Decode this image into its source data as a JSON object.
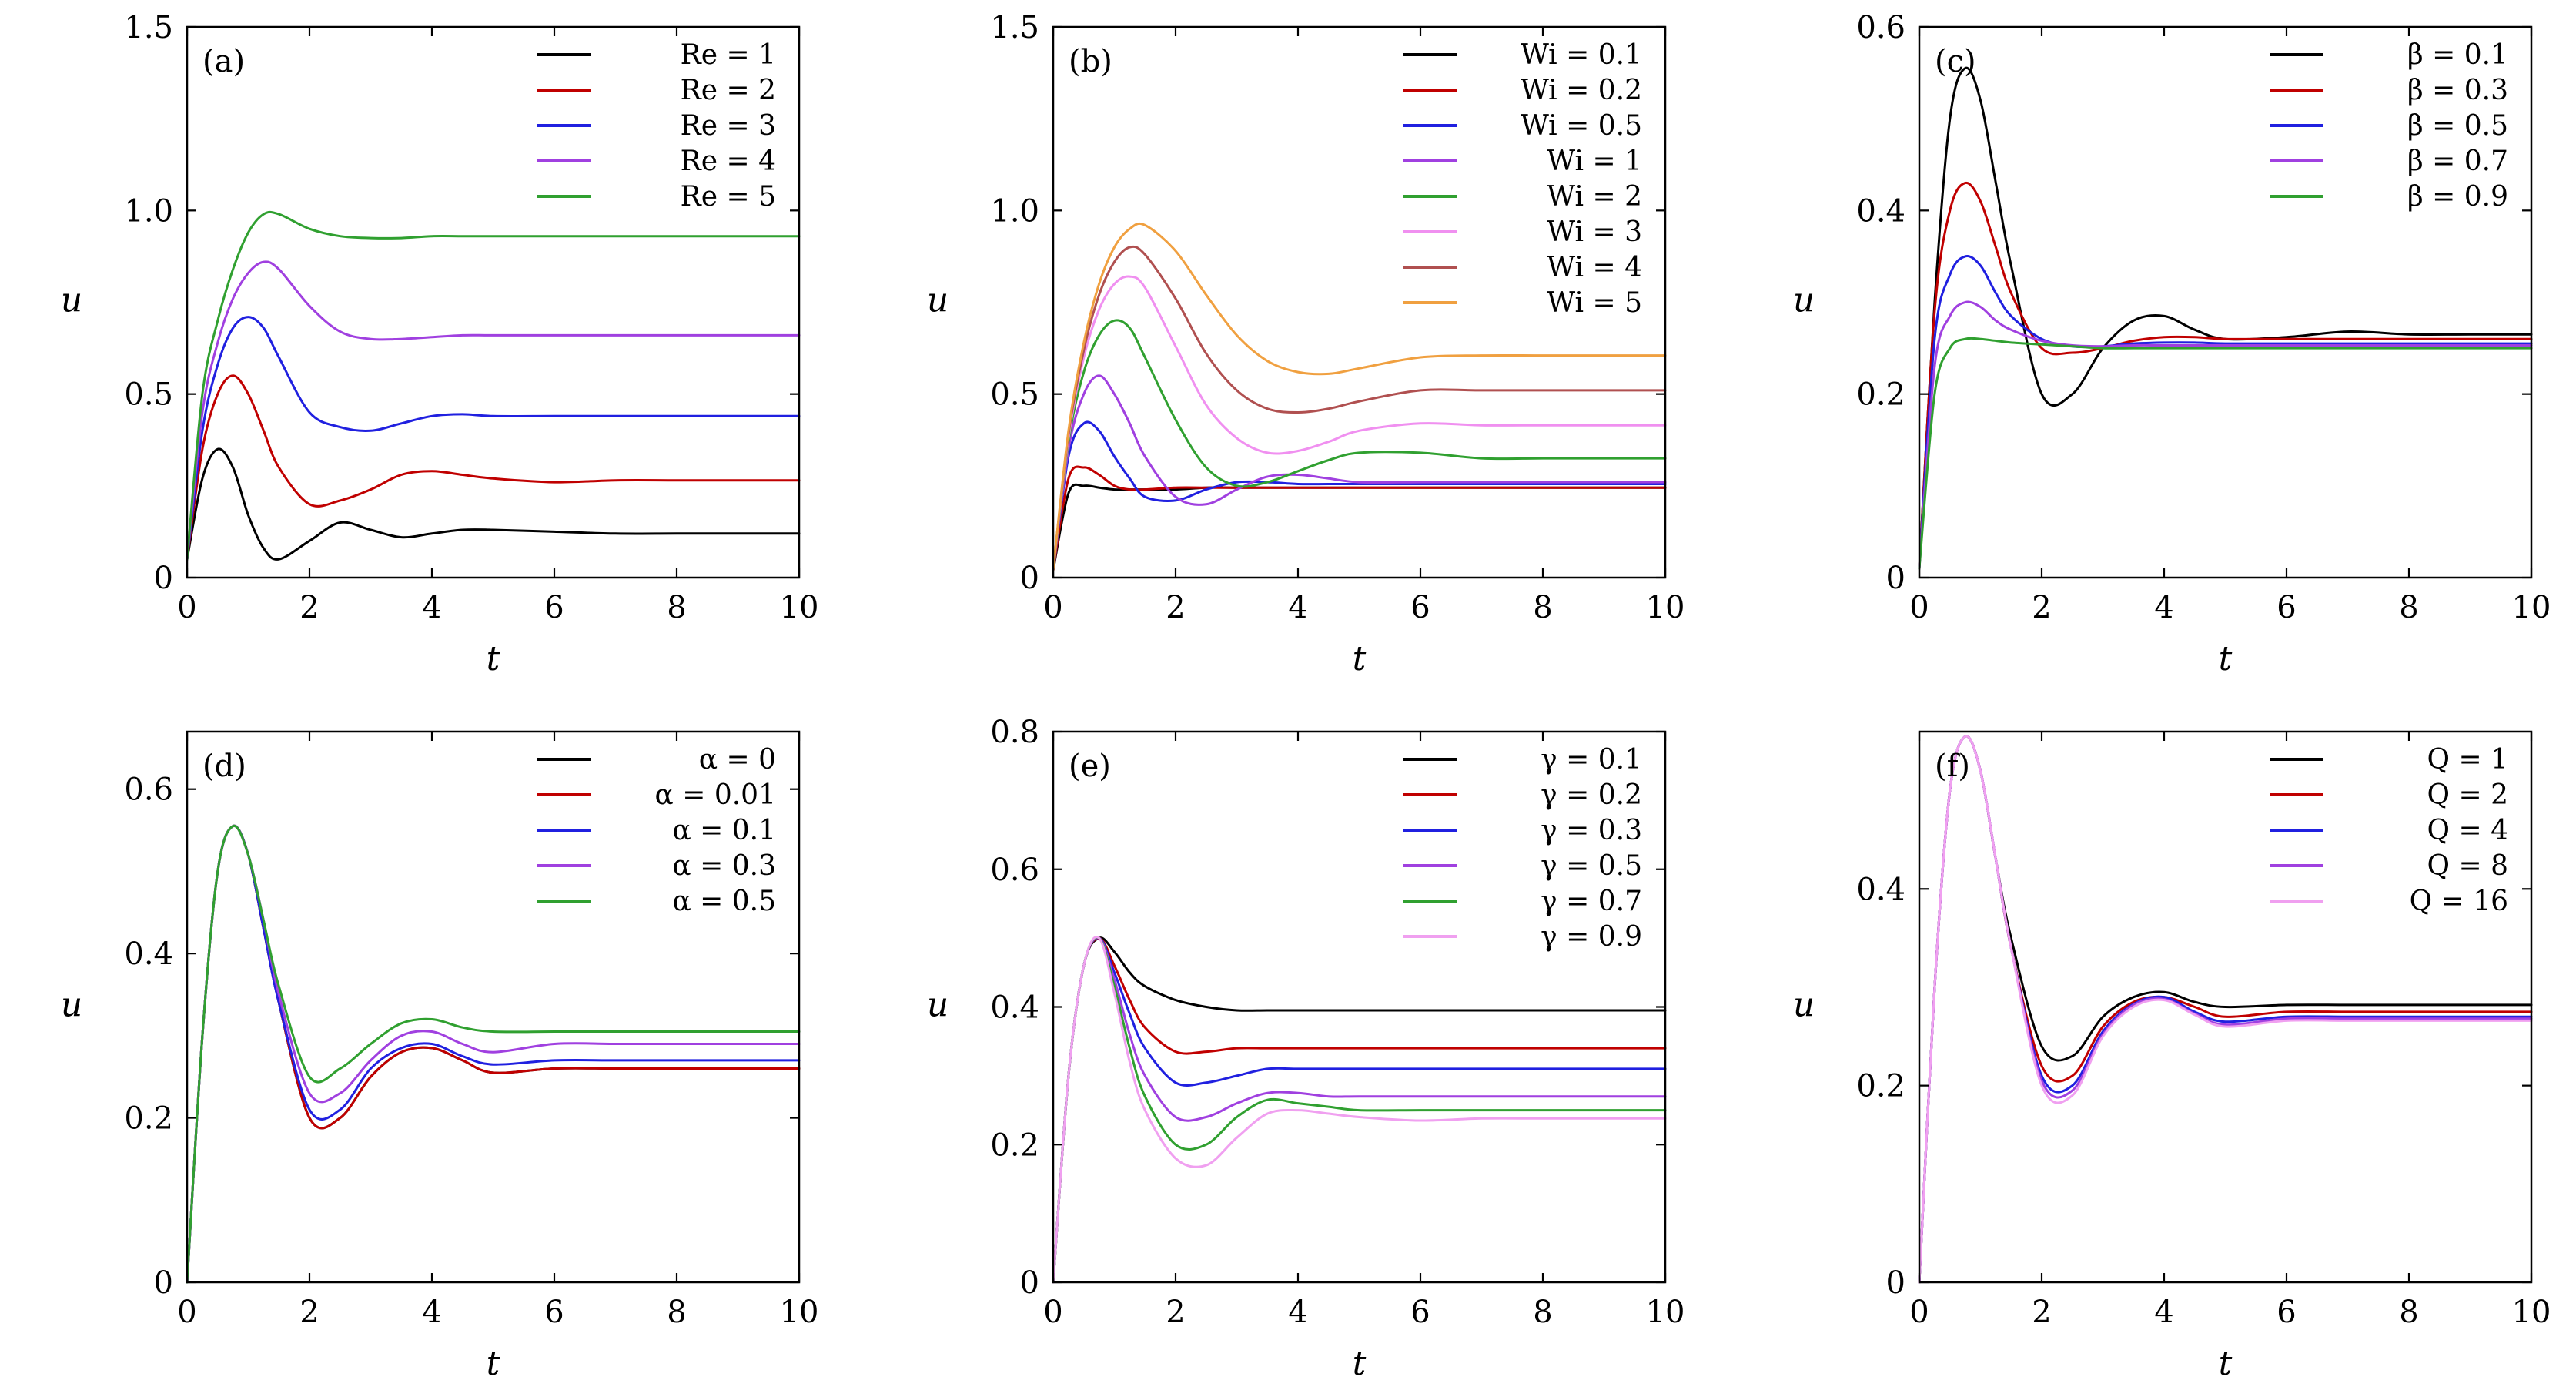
{
  "chart_data": [
    {
      "type": "line",
      "panel": "(a)",
      "xlabel": "t",
      "ylabel": "u",
      "xlim": [
        0,
        10
      ],
      "ylim": [
        0,
        1.5
      ],
      "xticks": [
        "0",
        "2",
        "4",
        "6",
        "8",
        "10"
      ],
      "yticks": [
        "0",
        "0.5",
        "1.0",
        "1.5"
      ],
      "x": [
        0,
        0.25,
        0.5,
        0.75,
        1,
        1.25,
        1.5,
        2,
        2.5,
        3,
        3.5,
        4,
        4.5,
        5,
        6,
        7,
        8,
        9,
        10
      ],
      "legend_position": "top-right",
      "series": [
        {
          "name": "Re = 1",
          "color": "#000000",
          "values": [
            0.05,
            0.27,
            0.35,
            0.3,
            0.17,
            0.08,
            0.05,
            0.1,
            0.15,
            0.13,
            0.11,
            0.12,
            0.13,
            0.13,
            0.125,
            0.12,
            0.12,
            0.12,
            0.12
          ]
        },
        {
          "name": "Re = 2",
          "color": "#c00000",
          "values": [
            0.05,
            0.35,
            0.5,
            0.55,
            0.5,
            0.4,
            0.3,
            0.2,
            0.21,
            0.24,
            0.28,
            0.29,
            0.28,
            0.27,
            0.26,
            0.265,
            0.265,
            0.265,
            0.265
          ]
        },
        {
          "name": "Re = 3",
          "color": "#2020e0",
          "values": [
            0.05,
            0.4,
            0.58,
            0.68,
            0.71,
            0.68,
            0.6,
            0.45,
            0.41,
            0.4,
            0.42,
            0.44,
            0.445,
            0.44,
            0.44,
            0.44,
            0.44,
            0.44,
            0.44
          ]
        },
        {
          "name": "Re = 4",
          "color": "#a040e0",
          "values": [
            0.05,
            0.45,
            0.64,
            0.76,
            0.83,
            0.86,
            0.84,
            0.74,
            0.67,
            0.65,
            0.65,
            0.655,
            0.66,
            0.66,
            0.66,
            0.66,
            0.66,
            0.66,
            0.66
          ]
        },
        {
          "name": "Re = 5",
          "color": "#30a030",
          "values": [
            0.05,
            0.5,
            0.7,
            0.84,
            0.94,
            0.99,
            0.99,
            0.95,
            0.93,
            0.925,
            0.925,
            0.93,
            0.93,
            0.93,
            0.93,
            0.93,
            0.93,
            0.93,
            0.93
          ]
        }
      ]
    },
    {
      "type": "line",
      "panel": "(b)",
      "xlabel": "t",
      "ylabel": "u",
      "xlim": [
        0,
        10
      ],
      "ylim": [
        0,
        1.5
      ],
      "xticks": [
        "0",
        "2",
        "4",
        "6",
        "8",
        "10"
      ],
      "yticks": [
        "0",
        "0.5",
        "1.0",
        "1.5"
      ],
      "x": [
        0,
        0.25,
        0.5,
        0.75,
        1,
        1.25,
        1.5,
        2,
        2.5,
        3,
        3.5,
        4,
        4.5,
        5,
        6,
        7,
        8,
        9,
        10
      ],
      "legend_position": "top-right",
      "series": [
        {
          "name": "Wi = 0.1",
          "color": "#000000",
          "values": [
            0.02,
            0.23,
            0.25,
            0.245,
            0.24,
            0.24,
            0.24,
            0.24,
            0.245,
            0.245,
            0.245,
            0.245,
            0.245,
            0.245,
            0.245,
            0.245,
            0.245,
            0.245,
            0.245
          ]
        },
        {
          "name": "Wi = 0.2",
          "color": "#c00000",
          "values": [
            0.02,
            0.27,
            0.3,
            0.28,
            0.25,
            0.24,
            0.24,
            0.245,
            0.245,
            0.245,
            0.245,
            0.245,
            0.245,
            0.245,
            0.245,
            0.245,
            0.245,
            0.245,
            0.245
          ]
        },
        {
          "name": "Wi = 0.5",
          "color": "#2020e0",
          "values": [
            0.02,
            0.33,
            0.42,
            0.4,
            0.33,
            0.27,
            0.22,
            0.21,
            0.24,
            0.26,
            0.26,
            0.255,
            0.255,
            0.255,
            0.255,
            0.255,
            0.255,
            0.255,
            0.255
          ]
        },
        {
          "name": "Wi = 1",
          "color": "#a040e0",
          "values": [
            0.02,
            0.35,
            0.5,
            0.55,
            0.5,
            0.42,
            0.33,
            0.22,
            0.2,
            0.24,
            0.275,
            0.28,
            0.27,
            0.26,
            0.26,
            0.26,
            0.26,
            0.26,
            0.26
          ]
        },
        {
          "name": "Wi = 2",
          "color": "#30a030",
          "values": [
            0.02,
            0.37,
            0.56,
            0.66,
            0.7,
            0.68,
            0.6,
            0.43,
            0.3,
            0.25,
            0.26,
            0.29,
            0.32,
            0.34,
            0.34,
            0.325,
            0.325,
            0.325,
            0.325
          ]
        },
        {
          "name": "Wi = 3",
          "color": "#f090f0",
          "values": [
            0.02,
            0.38,
            0.6,
            0.73,
            0.8,
            0.82,
            0.79,
            0.63,
            0.47,
            0.38,
            0.34,
            0.345,
            0.37,
            0.4,
            0.42,
            0.415,
            0.415,
            0.415,
            0.415
          ]
        },
        {
          "name": "Wi = 4",
          "color": "#b05050",
          "values": [
            0.02,
            0.39,
            0.62,
            0.77,
            0.86,
            0.9,
            0.88,
            0.76,
            0.61,
            0.51,
            0.46,
            0.45,
            0.46,
            0.48,
            0.51,
            0.51,
            0.51,
            0.51,
            0.51
          ]
        },
        {
          "name": "Wi = 5",
          "color": "#f0a040",
          "values": [
            0.02,
            0.4,
            0.64,
            0.8,
            0.9,
            0.95,
            0.96,
            0.89,
            0.77,
            0.66,
            0.59,
            0.56,
            0.555,
            0.57,
            0.6,
            0.605,
            0.605,
            0.605,
            0.605
          ]
        }
      ]
    },
    {
      "type": "line",
      "panel": "(c)",
      "xlabel": "t",
      "ylabel": "u",
      "xlim": [
        0,
        10
      ],
      "ylim": [
        0,
        0.6
      ],
      "xticks": [
        "0",
        "2",
        "4",
        "6",
        "8",
        "10"
      ],
      "yticks": [
        "0",
        "0.2",
        "0.4",
        "0.6"
      ],
      "x": [
        0,
        0.25,
        0.5,
        0.75,
        1,
        1.25,
        1.5,
        2,
        2.5,
        3,
        3.5,
        4,
        4.5,
        5,
        6,
        7,
        8,
        9,
        10
      ],
      "legend_position": "top-right",
      "series": [
        {
          "name": "β = 0.1",
          "color": "#000000",
          "values": [
            0.01,
            0.3,
            0.5,
            0.555,
            0.52,
            0.43,
            0.34,
            0.2,
            0.2,
            0.25,
            0.28,
            0.285,
            0.27,
            0.26,
            0.262,
            0.268,
            0.265,
            0.265,
            0.265
          ]
        },
        {
          "name": "β = 0.3",
          "color": "#c00000",
          "values": [
            0.01,
            0.29,
            0.4,
            0.43,
            0.41,
            0.36,
            0.31,
            0.25,
            0.245,
            0.25,
            0.258,
            0.262,
            0.262,
            0.26,
            0.26,
            0.26,
            0.26,
            0.26,
            0.26
          ]
        },
        {
          "name": "β = 0.5",
          "color": "#2020e0",
          "values": [
            0.01,
            0.26,
            0.33,
            0.35,
            0.34,
            0.31,
            0.285,
            0.26,
            0.252,
            0.252,
            0.255,
            0.256,
            0.256,
            0.255,
            0.255,
            0.255,
            0.255,
            0.255,
            0.255
          ]
        },
        {
          "name": "β = 0.7",
          "color": "#a040e0",
          "values": [
            0.01,
            0.23,
            0.285,
            0.3,
            0.295,
            0.28,
            0.27,
            0.258,
            0.253,
            0.252,
            0.253,
            0.253,
            0.253,
            0.253,
            0.253,
            0.253,
            0.253,
            0.253,
            0.253
          ]
        },
        {
          "name": "β = 0.9",
          "color": "#30a030",
          "values": [
            0.01,
            0.2,
            0.25,
            0.26,
            0.26,
            0.258,
            0.256,
            0.254,
            0.252,
            0.25,
            0.25,
            0.25,
            0.25,
            0.25,
            0.25,
            0.25,
            0.25,
            0.25,
            0.25
          ]
        }
      ]
    },
    {
      "type": "line",
      "panel": "(d)",
      "xlabel": "t",
      "ylabel": "u",
      "xlim": [
        0,
        10
      ],
      "ylim": [
        0,
        0.67
      ],
      "xticks": [
        "0",
        "2",
        "4",
        "6",
        "8",
        "10"
      ],
      "yticks": [
        "0",
        "0.2",
        "0.4",
        "0.6"
      ],
      "x": [
        0,
        0.25,
        0.5,
        0.75,
        1,
        1.25,
        1.5,
        2,
        2.5,
        3,
        3.5,
        4,
        4.5,
        5,
        6,
        7,
        8,
        9,
        10
      ],
      "legend_position": "top-right",
      "series": [
        {
          "name": "α = 0",
          "color": "#000000",
          "values": [
            0.0,
            0.3,
            0.5,
            0.555,
            0.52,
            0.43,
            0.34,
            0.2,
            0.2,
            0.25,
            0.28,
            0.285,
            0.27,
            0.255,
            0.26,
            0.26,
            0.26,
            0.26,
            0.26
          ]
        },
        {
          "name": "α = 0.01",
          "color": "#c00000",
          "values": [
            0.0,
            0.3,
            0.5,
            0.555,
            0.52,
            0.43,
            0.34,
            0.2,
            0.2,
            0.25,
            0.28,
            0.285,
            0.27,
            0.255,
            0.26,
            0.26,
            0.26,
            0.26,
            0.26
          ]
        },
        {
          "name": "α = 0.1",
          "color": "#2020e0",
          "values": [
            0.0,
            0.3,
            0.5,
            0.555,
            0.52,
            0.43,
            0.34,
            0.21,
            0.21,
            0.26,
            0.285,
            0.29,
            0.275,
            0.265,
            0.27,
            0.27,
            0.27,
            0.27,
            0.27
          ]
        },
        {
          "name": "α = 0.3",
          "color": "#a040e0",
          "values": [
            0.0,
            0.3,
            0.5,
            0.555,
            0.52,
            0.44,
            0.35,
            0.23,
            0.23,
            0.27,
            0.3,
            0.305,
            0.29,
            0.28,
            0.29,
            0.29,
            0.29,
            0.29,
            0.29
          ]
        },
        {
          "name": "α = 0.5",
          "color": "#30a030",
          "values": [
            0.0,
            0.3,
            0.5,
            0.555,
            0.52,
            0.44,
            0.36,
            0.25,
            0.26,
            0.29,
            0.315,
            0.32,
            0.31,
            0.305,
            0.305,
            0.305,
            0.305,
            0.305,
            0.305
          ]
        }
      ]
    },
    {
      "type": "line",
      "panel": "(e)",
      "xlabel": "t",
      "ylabel": "u",
      "xlim": [
        0,
        10
      ],
      "ylim": [
        0,
        0.8
      ],
      "xticks": [
        "0",
        "2",
        "4",
        "6",
        "8",
        "10"
      ],
      "yticks": [
        "0",
        "0.2",
        "0.4",
        "0.6",
        "0.8"
      ],
      "x": [
        0,
        0.25,
        0.5,
        0.75,
        1,
        1.25,
        1.5,
        2,
        2.5,
        3,
        3.5,
        4,
        4.5,
        5,
        6,
        7,
        8,
        9,
        10
      ],
      "legend_position": "top-right",
      "series": [
        {
          "name": "γ = 0.1",
          "color": "#000000",
          "values": [
            0.0,
            0.3,
            0.46,
            0.5,
            0.48,
            0.45,
            0.43,
            0.41,
            0.4,
            0.395,
            0.395,
            0.395,
            0.395,
            0.395,
            0.395,
            0.395,
            0.395,
            0.395,
            0.395
          ]
        },
        {
          "name": "γ = 0.2",
          "color": "#c00000",
          "values": [
            0.0,
            0.3,
            0.46,
            0.5,
            0.46,
            0.41,
            0.37,
            0.335,
            0.335,
            0.34,
            0.34,
            0.34,
            0.34,
            0.34,
            0.34,
            0.34,
            0.34,
            0.34,
            0.34
          ]
        },
        {
          "name": "γ = 0.3",
          "color": "#2020e0",
          "values": [
            0.0,
            0.3,
            0.46,
            0.5,
            0.45,
            0.39,
            0.34,
            0.29,
            0.29,
            0.3,
            0.31,
            0.31,
            0.31,
            0.31,
            0.31,
            0.31,
            0.31,
            0.31,
            0.31
          ]
        },
        {
          "name": "γ = 0.5",
          "color": "#a040e0",
          "values": [
            0.0,
            0.3,
            0.46,
            0.5,
            0.44,
            0.36,
            0.3,
            0.24,
            0.24,
            0.26,
            0.275,
            0.275,
            0.27,
            0.27,
            0.27,
            0.27,
            0.27,
            0.27,
            0.27
          ]
        },
        {
          "name": "γ = 0.7",
          "color": "#30a030",
          "values": [
            0.0,
            0.3,
            0.46,
            0.5,
            0.43,
            0.34,
            0.27,
            0.2,
            0.2,
            0.24,
            0.265,
            0.26,
            0.255,
            0.25,
            0.25,
            0.25,
            0.25,
            0.25,
            0.25
          ]
        },
        {
          "name": "γ = 0.9",
          "color": "#f0a0f0",
          "values": [
            0.0,
            0.3,
            0.46,
            0.5,
            0.42,
            0.32,
            0.25,
            0.18,
            0.17,
            0.21,
            0.245,
            0.25,
            0.245,
            0.24,
            0.235,
            0.238,
            0.238,
            0.238,
            0.238
          ]
        }
      ]
    },
    {
      "type": "line",
      "panel": "(f)",
      "xlabel": "t",
      "ylabel": "u",
      "xlim": [
        0,
        10
      ],
      "ylim": [
        0,
        0.56
      ],
      "xticks": [
        "0",
        "2",
        "4",
        "6",
        "8",
        "10"
      ],
      "yticks": [
        "0",
        "0.2",
        "0.4"
      ],
      "x": [
        0,
        0.25,
        0.5,
        0.75,
        1,
        1.25,
        1.5,
        2,
        2.5,
        3,
        3.5,
        4,
        4.5,
        5,
        6,
        7,
        8,
        9,
        10
      ],
      "legend_position": "top-right",
      "series": [
        {
          "name": "Q = 1",
          "color": "#000000",
          "values": [
            0.0,
            0.3,
            0.5,
            0.555,
            0.52,
            0.43,
            0.35,
            0.24,
            0.23,
            0.27,
            0.29,
            0.295,
            0.285,
            0.28,
            0.282,
            0.282,
            0.282,
            0.282,
            0.282
          ]
        },
        {
          "name": "Q = 2",
          "color": "#c00000",
          "values": [
            0.0,
            0.3,
            0.5,
            0.555,
            0.52,
            0.43,
            0.34,
            0.22,
            0.21,
            0.26,
            0.285,
            0.29,
            0.28,
            0.27,
            0.275,
            0.275,
            0.275,
            0.275,
            0.275
          ]
        },
        {
          "name": "Q = 4",
          "color": "#2020e0",
          "values": [
            0.0,
            0.3,
            0.5,
            0.555,
            0.52,
            0.43,
            0.34,
            0.21,
            0.2,
            0.255,
            0.283,
            0.29,
            0.275,
            0.265,
            0.27,
            0.27,
            0.27,
            0.27,
            0.27
          ]
        },
        {
          "name": "Q = 8",
          "color": "#a040e0",
          "values": [
            0.0,
            0.3,
            0.5,
            0.555,
            0.52,
            0.43,
            0.34,
            0.205,
            0.195,
            0.252,
            0.282,
            0.288,
            0.273,
            0.262,
            0.268,
            0.268,
            0.268,
            0.268,
            0.268
          ]
        },
        {
          "name": "Q = 16",
          "color": "#f0a0f0",
          "values": [
            0.0,
            0.3,
            0.5,
            0.555,
            0.52,
            0.43,
            0.34,
            0.2,
            0.19,
            0.25,
            0.28,
            0.287,
            0.272,
            0.26,
            0.266,
            0.266,
            0.266,
            0.266,
            0.266
          ]
        }
      ]
    }
  ]
}
